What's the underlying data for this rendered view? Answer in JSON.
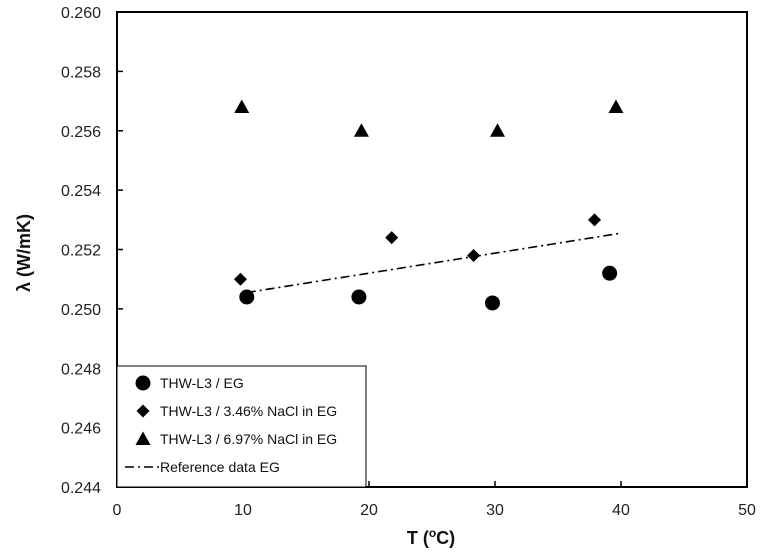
{
  "chart_data": {
    "type": "scatter",
    "title": "",
    "xlabel": "T (",
    "xlabel_sup": "o",
    "xlabel_suffix": "C)",
    "ylabel": "λ (W/mK)",
    "xlim": [
      0,
      50
    ],
    "ylim": [
      0.244,
      0.26
    ],
    "x_ticks": [
      "0",
      "10",
      "20",
      "30",
      "40",
      "50"
    ],
    "y_ticks": [
      "0.244",
      "0.246",
      "0.248",
      "0.250",
      "0.252",
      "0.254",
      "0.256",
      "0.258",
      "0.260"
    ],
    "grid": false,
    "legend_position": "bottom-left",
    "series": [
      {
        "name": "THW-L3 / EG",
        "marker": "circle",
        "points": [
          [
            10.3,
            0.2504
          ],
          [
            19.2,
            0.2504
          ],
          [
            29.8,
            0.2502
          ],
          [
            39.1,
            0.2512
          ]
        ]
      },
      {
        "name": "THW-L3 / 3.46% NaCl in EG",
        "marker": "diamond",
        "points": [
          [
            9.8,
            0.251
          ],
          [
            21.8,
            0.2524
          ],
          [
            28.3,
            0.2518
          ],
          [
            37.9,
            0.253
          ]
        ]
      },
      {
        "name": "THW-L3 / 6.97% NaCl in EG",
        "marker": "triangle",
        "points": [
          [
            9.9,
            0.2568
          ],
          [
            19.4,
            0.256
          ],
          [
            30.2,
            0.256
          ],
          [
            39.6,
            0.2568
          ]
        ]
      },
      {
        "name": "Reference data EG",
        "marker": "dashdot-line",
        "points": [
          [
            10.3,
            0.25055
          ],
          [
            40.0,
            0.25255
          ]
        ]
      }
    ],
    "colors": {
      "marker": "#000000",
      "axis": "#000000"
    }
  }
}
